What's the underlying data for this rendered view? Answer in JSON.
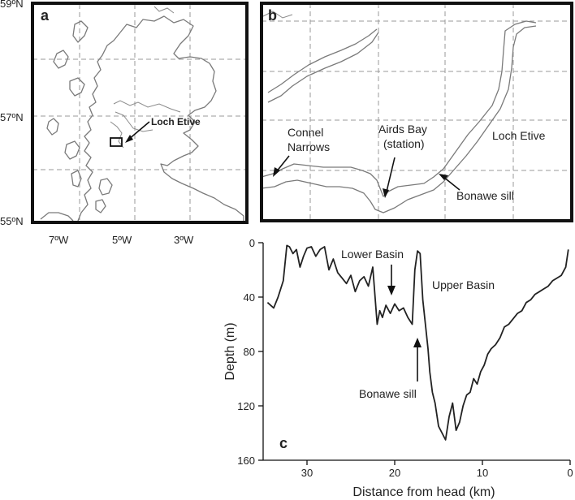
{
  "panels": {
    "a": {
      "letter": "a",
      "lat_labels": [
        "59ºN",
        "57ºN",
        "55ºN"
      ],
      "lon_labels": [
        "7ºW",
        "5ºW",
        "3ºW"
      ],
      "site_label": "Loch Etive"
    },
    "b": {
      "letter": "b",
      "labels": {
        "connel_1": "Connel",
        "connel_2": "Narrows",
        "airds_1": "Airds Bay",
        "airds_2": "(station)",
        "loch_etive": "Loch Etive",
        "bonawe_sill": "Bonawe sill"
      }
    },
    "c": {
      "letter": "c",
      "annotations": {
        "lower_basin": "Lower Basin",
        "upper_basin": "Upper Basin",
        "bonawe_sill": "Bonawe sill"
      }
    }
  },
  "chart_data": {
    "type": "line",
    "title": "",
    "xlabel": "Distance from head (km)",
    "ylabel": "Depth (m)",
    "xlim": [
      35,
      0
    ],
    "ylim": [
      0,
      160
    ],
    "x_reversed": true,
    "y_inverted": true,
    "xticks": [
      30,
      20,
      10,
      0
    ],
    "yticks": [
      0,
      40,
      80,
      120,
      160
    ],
    "series": [
      {
        "x": [
          34.5,
          33.8,
          33.3,
          32.7,
          32.3,
          32.0,
          31.6,
          31.2,
          30.8,
          30.4,
          30.0,
          29.5,
          29.0,
          28.5,
          28.0,
          27.5,
          27.0,
          26.5,
          26.0,
          25.5,
          25.0,
          24.5,
          24.0,
          23.5,
          23.0,
          22.5,
          22.0,
          21.7,
          21.4,
          21.0,
          20.5,
          20.0,
          19.5,
          19.0,
          18.5,
          18.0,
          17.7,
          17.4,
          17.1,
          16.8,
          16.5,
          16.2,
          16.0,
          15.7,
          15.4,
          15.0,
          14.6,
          14.2,
          13.8,
          13.4,
          13.0,
          12.6,
          12.2,
          11.8,
          11.4,
          11.0,
          10.6,
          10.2,
          9.8,
          9.4,
          9.0,
          8.5,
          8.0,
          7.5,
          7.0,
          6.5,
          6.0,
          5.5,
          5.0,
          4.5,
          4.0,
          3.5,
          3.0,
          2.5,
          2.0,
          1.5,
          1.0,
          0.5,
          0.2
        ],
        "y": [
          44,
          48,
          40,
          28,
          2,
          3,
          8,
          5,
          18,
          10,
          4,
          3,
          10,
          5,
          3,
          20,
          12,
          22,
          26,
          30,
          24,
          36,
          28,
          25,
          32,
          18,
          60,
          50,
          55,
          46,
          52,
          45,
          50,
          48,
          55,
          60,
          20,
          6,
          8,
          42,
          60,
          78,
          95,
          110,
          118,
          135,
          140,
          145,
          128,
          118,
          138,
          132,
          120,
          112,
          110,
          100,
          104,
          95,
          90,
          82,
          78,
          75,
          70,
          62,
          60,
          56,
          52,
          50,
          44,
          42,
          38,
          36,
          34,
          32,
          28,
          26,
          24,
          18,
          5
        ]
      }
    ]
  }
}
